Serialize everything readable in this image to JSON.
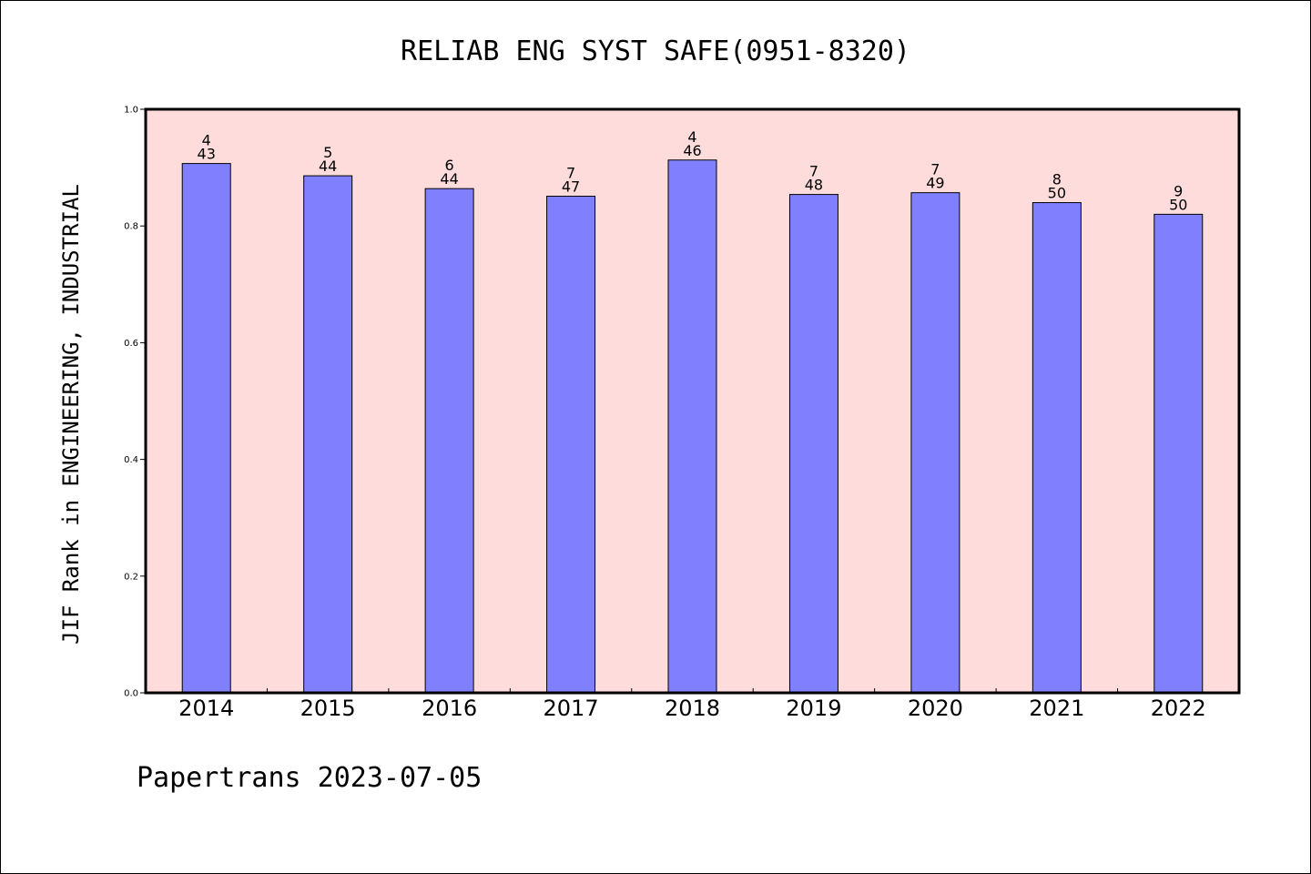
{
  "chart_data": {
    "type": "bar",
    "title": "RELIAB ENG SYST SAFE(0951-8320)",
    "ylabel": "JIF Rank in ENGINEERING, INDUSTRIAL",
    "xlabel": "",
    "ylim": [
      0,
      1.0
    ],
    "yticks": [
      "0.0",
      "0.2",
      "0.4",
      "0.6",
      "0.8",
      "1.0"
    ],
    "grid": false,
    "categories": [
      "2014",
      "2015",
      "2016",
      "2017",
      "2018",
      "2019",
      "2020",
      "2021",
      "2022"
    ],
    "values": [
      0.907,
      0.886,
      0.864,
      0.851,
      0.913,
      0.854,
      0.857,
      0.84,
      0.82
    ],
    "rank": [
      "4",
      "5",
      "6",
      "7",
      "4",
      "7",
      "7",
      "8",
      "9"
    ],
    "total": [
      "43",
      "44",
      "44",
      "47",
      "46",
      "48",
      "49",
      "50",
      "50"
    ],
    "colors": {
      "bar": "#8080ff",
      "plot_bg": "#ffdcdc",
      "axis": "#000000"
    }
  },
  "footer": "Papertrans 2023-07-05"
}
